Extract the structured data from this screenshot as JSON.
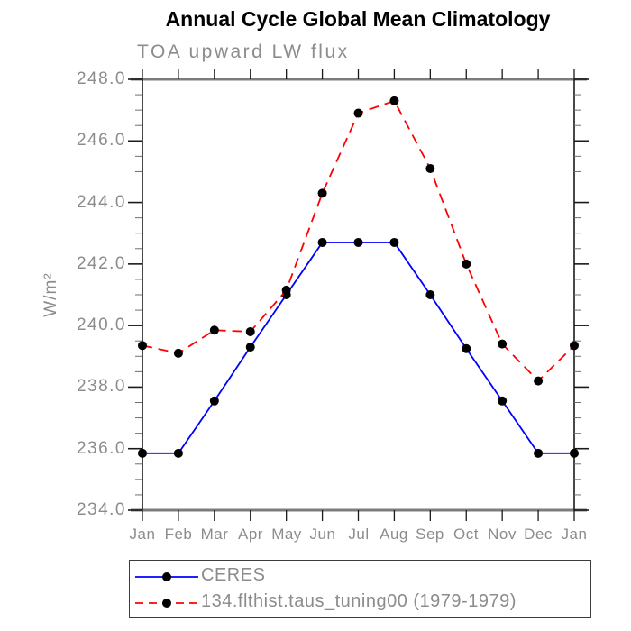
{
  "title": "Annual Cycle Global Mean Climatology",
  "subtitle": "TOA upward LW flux",
  "y_axis": {
    "label": "W/m²",
    "ticks": [
      "248.0",
      "246.0",
      "244.0",
      "242.0",
      "240.0",
      "238.0",
      "236.0",
      "234.0"
    ]
  },
  "x_axis": {
    "ticks": [
      "Jan",
      "Feb",
      "Mar",
      "Apr",
      "May",
      "Jun",
      "Jul",
      "Aug",
      "Sep",
      "Oct",
      "Nov",
      "Dec",
      "Jan"
    ]
  },
  "chart_data": {
    "type": "line",
    "title": "Annual Cycle Global Mean Climatology",
    "subtitle": "TOA upward LW flux",
    "xlabel": "",
    "ylabel": "W/m²",
    "categories": [
      "Jan",
      "Feb",
      "Mar",
      "Apr",
      "May",
      "Jun",
      "Jul",
      "Aug",
      "Sep",
      "Oct",
      "Nov",
      "Dec",
      "Jan"
    ],
    "series": [
      {
        "name": "CERES",
        "line_color": "#0000ff",
        "line_style": "solid",
        "marker": "circle",
        "marker_color": "#000000",
        "values": [
          235.85,
          235.85,
          237.55,
          239.3,
          241.0,
          242.7,
          242.7,
          242.7,
          241.0,
          239.25,
          237.55,
          235.85,
          235.85
        ]
      },
      {
        "name": "134.flthist.taus_tuning00 (1979-1979)",
        "line_color": "#ff0000",
        "line_style": "dashed",
        "marker": "circle",
        "marker_color": "#000000",
        "values": [
          239.35,
          239.1,
          239.85,
          239.8,
          241.15,
          244.3,
          246.9,
          247.3,
          245.1,
          242.0,
          239.4,
          238.2,
          239.35
        ]
      }
    ],
    "ylim": [
      234.0,
      248.0
    ],
    "ytick_interval": 2.0,
    "yminor_interval": 0.5,
    "grid": false,
    "legend_position": "bottom-left-box"
  },
  "colors": {
    "ceres_line": "#0000ff",
    "model_line": "#ff0000",
    "marker": "#000000",
    "axis_text": "#8c8c8c",
    "frame_line": "#7c7c7c",
    "axis_line": "#1a1a1a",
    "title_text": "#000000"
  }
}
